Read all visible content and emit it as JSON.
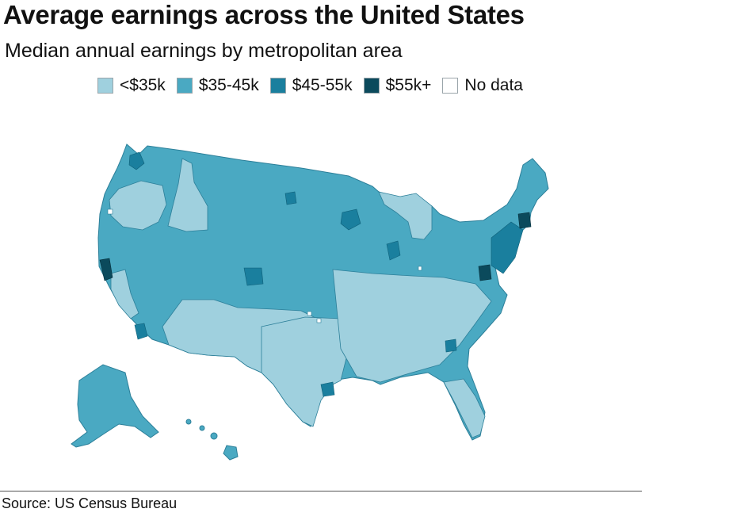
{
  "title": "Average earnings across the United States",
  "subtitle": "Median annual earnings by metropolitan area",
  "legend": [
    {
      "label": "<$35k",
      "color": "#9fd0de"
    },
    {
      "label": "$35-45k",
      "color": "#4aa9c2"
    },
    {
      "label": "$45-55k",
      "color": "#1a7f9e"
    },
    {
      "label": "$55k+",
      "color": "#0b4a5c"
    },
    {
      "label": "No data",
      "color": "#ffffff"
    }
  ],
  "source": "Source: US Census Bureau"
}
